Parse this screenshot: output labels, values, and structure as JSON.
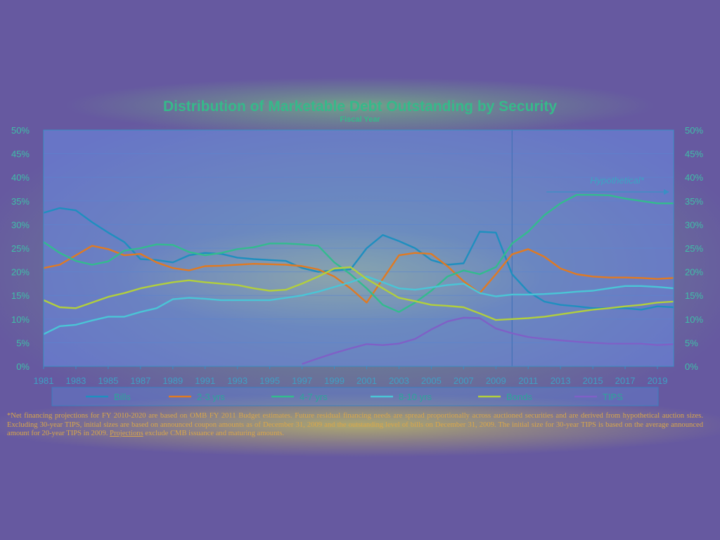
{
  "chart_data": {
    "type": "line",
    "title": "Distribution of Marketable Debt Outstanding by Security",
    "subtitle": "Fiscal Year",
    "xlabel": "",
    "ylabel": "",
    "x": [
      1981,
      1982,
      1983,
      1984,
      1985,
      1986,
      1987,
      1988,
      1989,
      1990,
      1991,
      1992,
      1993,
      1994,
      1995,
      1996,
      1997,
      1998,
      1999,
      2000,
      2001,
      2002,
      2003,
      2004,
      2005,
      2006,
      2007,
      2008,
      2009,
      2010,
      2011,
      2012,
      2013,
      2014,
      2015,
      2016,
      2017,
      2018,
      2019,
      2020
    ],
    "xticks": [
      "1981",
      "1983",
      "1985",
      "1987",
      "1989",
      "1991",
      "1993",
      "1995",
      "1997",
      "1999",
      "2001",
      "2003",
      "2005",
      "2007",
      "2009",
      "2011",
      "2013",
      "2015",
      "2017",
      "2019"
    ],
    "xlim": [
      1981,
      2020
    ],
    "yticks": [
      "0%",
      "5%",
      "10%",
      "15%",
      "20%",
      "25%",
      "30%",
      "35%",
      "40%",
      "45%",
      "50%"
    ],
    "ylim": [
      0,
      50
    ],
    "grid": true,
    "legend_position": "bottom",
    "series": [
      {
        "name": "Bills",
        "color": "#1f8fbf",
        "values": [
          32.5,
          33.5,
          33,
          30.5,
          28.3,
          26.3,
          22.7,
          22.5,
          22,
          23.5,
          24,
          23.8,
          23,
          22.7,
          22.5,
          22.3,
          20.8,
          20,
          20.3,
          20.5,
          25,
          27.8,
          26.5,
          25,
          22.5,
          21.5,
          21.8,
          28.5,
          28.3,
          19.5,
          15.8,
          13.7,
          13,
          12.7,
          12.3,
          12.3,
          12.3,
          12,
          12.7,
          12.5
        ]
      },
      {
        "name": "2-3 yrs",
        "color": "#e07a22",
        "values": [
          20.8,
          21.5,
          23.5,
          25.5,
          24.8,
          23.5,
          23.8,
          22,
          20.8,
          20.3,
          21.2,
          21.3,
          21.5,
          21.7,
          21.6,
          21.5,
          21.2,
          20.5,
          19,
          16.5,
          13.5,
          18.5,
          23.5,
          24,
          23.8,
          21.2,
          18,
          15.5,
          19.5,
          23.7,
          24.8,
          23.2,
          20.7,
          19.5,
          19,
          18.8,
          18.8,
          18.7,
          18.5,
          18.7
        ]
      },
      {
        "name": "4-7 yrs",
        "color": "#33bb8e",
        "values": [
          26.3,
          24,
          22.3,
          21.5,
          22.2,
          24.5,
          25,
          25.8,
          25.7,
          24.2,
          23.5,
          24,
          24.8,
          25.2,
          26,
          26,
          25.8,
          25.5,
          22,
          19.5,
          16.5,
          13,
          11.5,
          13.5,
          16,
          19,
          20.3,
          19.5,
          21,
          26,
          28.5,
          32,
          34.5,
          36.3,
          36.3,
          36.2,
          35.5,
          35,
          34.5,
          34.5
        ]
      },
      {
        "name": "8-10 yrs",
        "color": "#4ac5d6",
        "values": [
          6.8,
          8.5,
          8.8,
          9.7,
          10.5,
          10.5,
          11.5,
          12.3,
          14.2,
          14.5,
          14.3,
          14,
          14,
          14,
          14,
          14.5,
          15,
          15.8,
          16.8,
          17.8,
          19,
          17.8,
          16.5,
          16.2,
          16.7,
          17.2,
          17.5,
          15.5,
          14.8,
          15.2,
          15.2,
          15.3,
          15.5,
          15.8,
          16,
          16.5,
          17,
          17,
          16.8,
          16.5
        ]
      },
      {
        "name": "Bonds",
        "color": "#b2cf3c",
        "values": [
          14,
          12.5,
          12.3,
          13.5,
          14.7,
          15.5,
          16.5,
          17.2,
          17.8,
          18.2,
          17.8,
          17.5,
          17.2,
          16.5,
          16,
          16.2,
          17.5,
          19,
          20.7,
          21,
          18.5,
          16.5,
          14.5,
          13.8,
          13,
          12.8,
          12.5,
          11.2,
          9.8,
          10,
          10.2,
          10.5,
          11,
          11.5,
          12,
          12.3,
          12.7,
          13,
          13.5,
          13.7
        ]
      },
      {
        "name": "TIPS",
        "color": "#7f60c6",
        "values": [
          null,
          null,
          null,
          null,
          null,
          null,
          null,
          null,
          null,
          null,
          null,
          null,
          null,
          null,
          null,
          null,
          0.5,
          1.7,
          2.8,
          3.8,
          4.7,
          4.5,
          4.8,
          5.8,
          7.8,
          9.5,
          10.3,
          10.2,
          8,
          7,
          6.2,
          5.8,
          5.5,
          5.2,
          5,
          4.8,
          4.8,
          4.8,
          4.5,
          4.7
        ]
      }
    ],
    "annotations": [
      {
        "text": "Hypothetical*",
        "x_start": 2013,
        "x_end": 2020,
        "y": 37.5
      }
    ],
    "divider_x": 2010
  },
  "footnote": {
    "part1": "*Net financing projections for FY 2010-2020 are based on OMB FY 2011 Budget estimates. Future residual financing needs are spread proportionally across auctioned securities and are derived from hypothetical auction sizes. Excluding 30-year TIPS, initial sizes are based on announced coupon amounts as of December 31, 2009 and the outstanding level of bills on December 31, 2009. The initial size for 30-year TIPS is based on the average announced amount for 20-year TIPS in 2009. ",
    "underlined": "Projections",
    "part2": " exclude CMB issuance and maturing amounts."
  },
  "colors": {
    "axis": "#3a8fc4",
    "grid": "#5a86d0",
    "plot_bg": "#6a8de6"
  }
}
